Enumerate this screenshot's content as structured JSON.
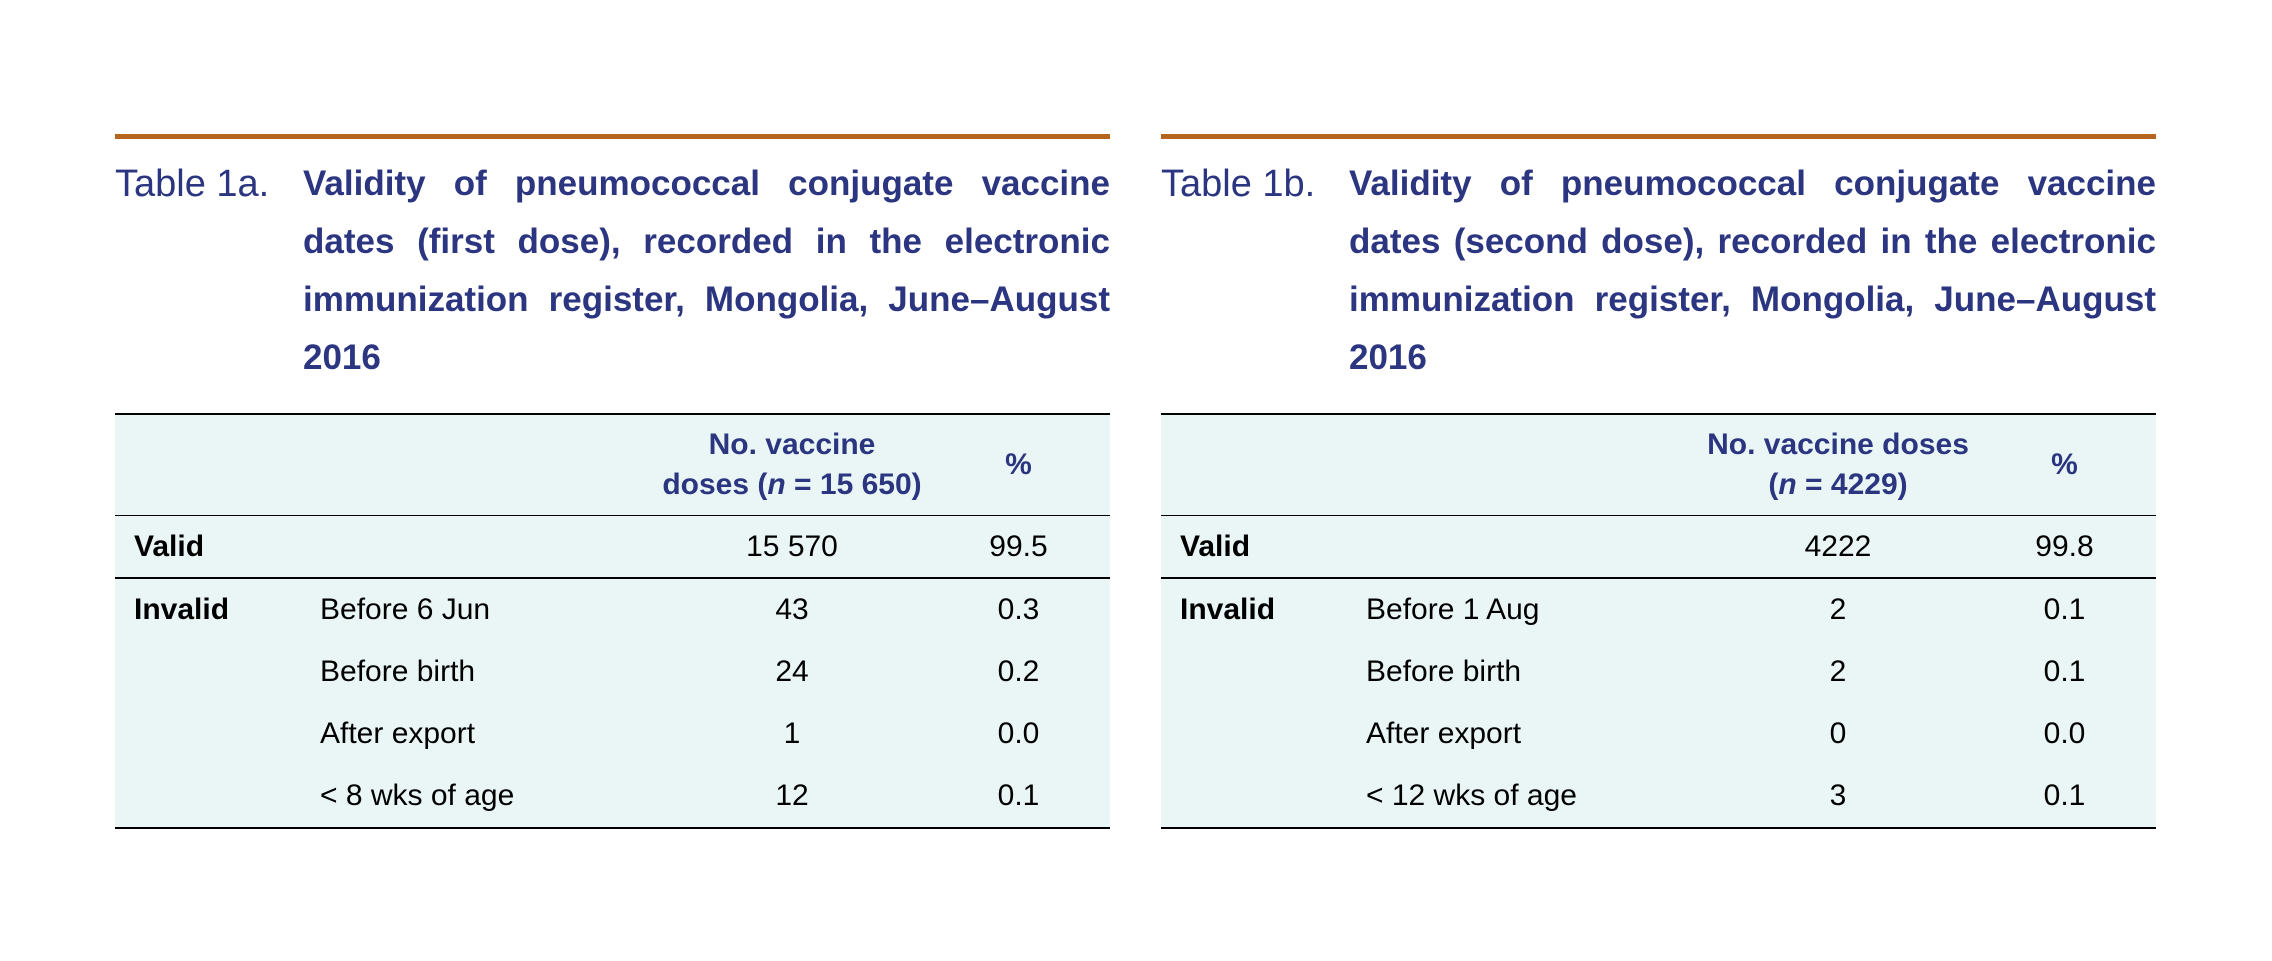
{
  "tables": [
    {
      "label": "Table 1a.",
      "title": "Validity of pneumococcal conjugate vaccine dates (first dose), recorded in the electronic immunization register, Mongolia, June–August 2016",
      "header": {
        "count_line1": "No. vaccine",
        "count_pre": "doses (",
        "count_n": "n",
        "count_post": " = 15 650)",
        "percent": "%"
      },
      "valid": {
        "label": "Valid",
        "count": "15 570",
        "percent": "99.5"
      },
      "invalid": {
        "label": "Invalid",
        "rows": [
          {
            "reason": "Before 6 Jun",
            "count": "43",
            "percent": "0.3"
          },
          {
            "reason": "Before birth",
            "count": "24",
            "percent": "0.2"
          },
          {
            "reason": "After export",
            "count": "1",
            "percent": "0.0"
          },
          {
            "reason": "< 8 wks of age",
            "count": "12",
            "percent": "0.1"
          }
        ]
      }
    },
    {
      "label": "Table 1b.",
      "title": "Validity of pneumococcal conjugate vaccine dates (second dose), recorded in the electronic immunization register, Mongolia, June–August 2016",
      "header": {
        "count_line1": "No. vaccine doses",
        "count_pre": "(",
        "count_n": "n",
        "count_post": " = 4229)",
        "percent": "%"
      },
      "valid": {
        "label": "Valid",
        "count": "4222",
        "percent": "99.8"
      },
      "invalid": {
        "label": "Invalid",
        "rows": [
          {
            "reason": "Before 1 Aug",
            "count": "2",
            "percent": "0.1"
          },
          {
            "reason": "Before birth",
            "count": "2",
            "percent": "0.1"
          },
          {
            "reason": "After export",
            "count": "0",
            "percent": "0.0"
          },
          {
            "reason": "< 12 wks of age",
            "count": "3",
            "percent": "0.1"
          }
        ]
      }
    }
  ]
}
